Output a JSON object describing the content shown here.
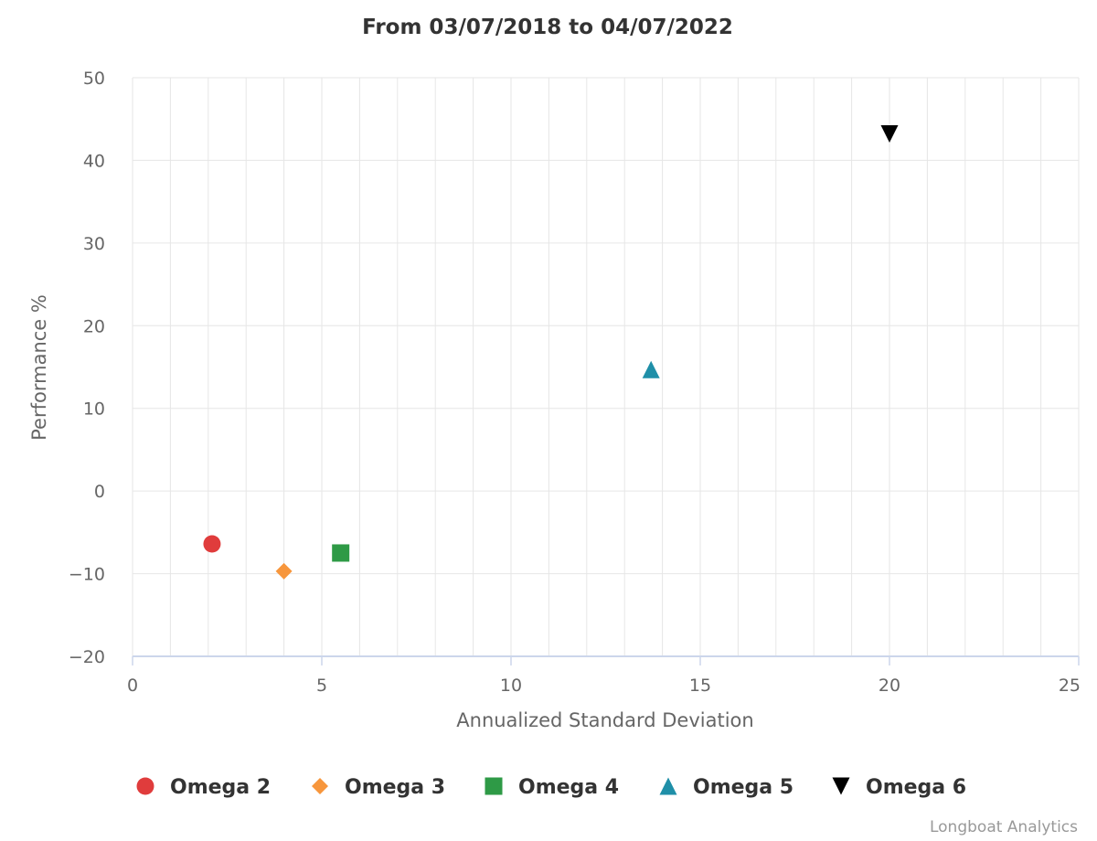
{
  "chart_data": {
    "type": "scatter",
    "title": "From 03/07/2018 to 04/07/2022",
    "xlabel": "Annualized Standard Deviation",
    "ylabel": "Performance %",
    "xlim": [
      0,
      25
    ],
    "ylim": [
      -20,
      50
    ],
    "x_ticks": [
      "0",
      "5",
      "10",
      "15",
      "20",
      "25"
    ],
    "y_ticks": [
      "50",
      "40",
      "30",
      "20",
      "10",
      "0",
      "−10",
      "−20"
    ],
    "grid": true,
    "legend_position": "bottom",
    "series": [
      {
        "name": "Omega 2",
        "marker": "circle",
        "color": "#e03c3c",
        "points": [
          {
            "x": 2.1,
            "y": -6.4
          }
        ]
      },
      {
        "name": "Omega 3",
        "marker": "diamond",
        "color": "#f7963c",
        "points": [
          {
            "x": 4.0,
            "y": -9.7
          }
        ]
      },
      {
        "name": "Omega 4",
        "marker": "square",
        "color": "#2e9a46",
        "points": [
          {
            "x": 5.5,
            "y": -7.5
          }
        ]
      },
      {
        "name": "Omega 5",
        "marker": "triangle",
        "color": "#1f8fa8",
        "points": [
          {
            "x": 13.7,
            "y": 14.7
          }
        ]
      },
      {
        "name": "Omega 6",
        "marker": "triangle-down",
        "color": "#000000",
        "points": [
          {
            "x": 20.0,
            "y": 43.2
          }
        ]
      }
    ]
  },
  "credits": "Longboat Analytics"
}
